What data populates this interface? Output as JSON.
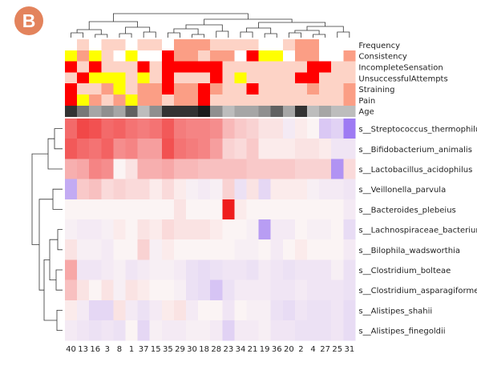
{
  "panel_label": "B",
  "colors": {
    "badge": "#e3835c",
    "high": "#ef1d1d",
    "mid": "#fbf4f4",
    "low": "#9e7bf3",
    "annotation_yellow": "#ffff00",
    "annotation_red": "#ff0000",
    "annotation_light": "#fdd3c6"
  },
  "chart_data": {
    "type": "heatmap",
    "title": "",
    "xlabel": "",
    "ylabel": "",
    "samples": [
      "40",
      "13",
      "16",
      "3",
      "8",
      "1",
      "37",
      "15",
      "35",
      "29",
      "30",
      "18",
      "28",
      "23",
      "34",
      "21",
      "19",
      "36",
      "20",
      "2",
      "4",
      "27",
      "25",
      "31"
    ],
    "annotation_tracks": [
      {
        "name": "Frequency",
        "values": [
          "w",
          "l",
          "w",
          "l",
          "l",
          "w",
          "l",
          "l",
          "w",
          "m",
          "m",
          "m",
          "l",
          "l",
          "l",
          "l",
          "w",
          "w",
          "l",
          "m",
          "m",
          "w",
          "w",
          "w"
        ]
      },
      {
        "name": "Consistency",
        "values": [
          "y",
          "m",
          "y",
          "l",
          "w",
          "y",
          "w",
          "w",
          "r",
          "m",
          "m",
          "l",
          "m",
          "m",
          "w",
          "r",
          "y",
          "y",
          "w",
          "m",
          "m",
          "w",
          "w",
          "m"
        ]
      },
      {
        "name": "IncompleteSensation",
        "values": [
          "r",
          "l",
          "r",
          "l",
          "l",
          "l",
          "r",
          "l",
          "r",
          "r",
          "r",
          "r",
          "r",
          "l",
          "l",
          "l",
          "l",
          "l",
          "l",
          "l",
          "r",
          "r",
          "l",
          "l"
        ]
      },
      {
        "name": "UnsuccessfulAttempts",
        "values": [
          "l",
          "r",
          "y",
          "y",
          "y",
          "l",
          "y",
          "l",
          "r",
          "l",
          "l",
          "l",
          "r",
          "l",
          "y",
          "l",
          "l",
          "l",
          "l",
          "r",
          "r",
          "l",
          "l",
          "l"
        ]
      },
      {
        "name": "Straining",
        "values": [
          "r",
          "l",
          "l",
          "m",
          "y",
          "l",
          "m",
          "m",
          "r",
          "m",
          "m",
          "r",
          "m",
          "l",
          "l",
          "r",
          "l",
          "l",
          "l",
          "l",
          "m",
          "l",
          "l",
          "m"
        ]
      },
      {
        "name": "Pain",
        "values": [
          "r",
          "y",
          "m",
          "l",
          "m",
          "y",
          "m",
          "m",
          "l",
          "m",
          "m",
          "r",
          "l",
          "l",
          "l",
          "l",
          "l",
          "l",
          "l",
          "l",
          "l",
          "l",
          "l",
          "m"
        ]
      },
      {
        "name": "Age",
        "values": [
          8,
          5,
          3,
          4,
          3,
          6,
          2,
          4,
          8,
          8,
          8,
          9,
          4,
          2,
          3,
          3,
          4,
          6,
          3,
          8,
          2,
          3,
          2,
          2
        ]
      }
    ],
    "color_scale": [
      "low",
      "mid",
      "high"
    ],
    "rows": [
      {
        "taxon": "s__Streptococcus_thermophilus",
        "values": [
          1.6,
          2.0,
          1.9,
          1.6,
          1.7,
          1.5,
          1.4,
          1.5,
          1.8,
          1.4,
          1.3,
          1.3,
          1.2,
          0.7,
          0.5,
          0.4,
          0.2,
          0.2,
          -0.2,
          0.1,
          0,
          -0.9,
          -0.7,
          -2.5
        ]
      },
      {
        "taxon": "s__Bifidobacterium_animalis",
        "values": [
          1.8,
          1.6,
          1.5,
          1.7,
          1.2,
          1.3,
          1.0,
          1.0,
          1.9,
          1.5,
          1.4,
          1.3,
          1.0,
          0.4,
          0.3,
          0.5,
          0.1,
          0.1,
          0.1,
          0.2,
          0.2,
          0.1,
          -0.3,
          -0.3
        ]
      },
      {
        "taxon": "s__Lactobacillus_acidophilus",
        "values": [
          0.8,
          0.9,
          1.3,
          1.2,
          0,
          0.2,
          0.8,
          0.8,
          0.9,
          0.7,
          0.7,
          0.6,
          0.6,
          0.6,
          0.6,
          0.5,
          0.5,
          0.5,
          0.5,
          0.4,
          0.4,
          0.4,
          -2.0,
          0.3
        ]
      },
      {
        "taxon": "s__Veillonella_parvula",
        "values": [
          -1.5,
          0.5,
          0.6,
          0.3,
          0.4,
          0.3,
          0.3,
          0.1,
          0.3,
          0.1,
          -0.1,
          -0.2,
          -0.1,
          0.4,
          -0.4,
          0.2,
          -0.6,
          0.1,
          0.1,
          0.1,
          -0.1,
          -0.2,
          -0.2,
          -0.3
        ]
      },
      {
        "taxon": "s__Bacteroides_plebeius",
        "values": [
          0,
          0,
          0,
          0,
          0,
          0,
          0,
          0,
          0,
          0.2,
          0,
          0,
          0,
          2.5,
          0.1,
          0,
          0,
          0,
          0,
          0,
          0,
          0,
          0,
          -0.2
        ]
      },
      {
        "taxon": "s__Lachnospiraceae_bacterium",
        "values": [
          -0.1,
          -0.2,
          -0.2,
          -0.1,
          0.1,
          0,
          0.2,
          0.1,
          0.3,
          0.2,
          0.2,
          0.2,
          0.1,
          0,
          0,
          -0.1,
          -1.8,
          -0.2,
          -0.2,
          0,
          -0.1,
          -0.1,
          0,
          -0.5
        ]
      },
      {
        "taxon": "s__Bilophila_wadsworthia",
        "values": [
          0.2,
          -0.1,
          -0.1,
          -0.2,
          0,
          0,
          0.4,
          -0.1,
          0.1,
          0,
          0,
          0,
          0,
          0,
          -0.1,
          -0.1,
          0,
          -0.2,
          0,
          0.1,
          0,
          0,
          0,
          -0.2
        ]
      },
      {
        "taxon": "s__Clostridium_bolteae",
        "values": [
          0.9,
          -0.3,
          -0.3,
          -0.2,
          -0.1,
          -0.3,
          -0.2,
          -0.1,
          -0.1,
          -0.2,
          -0.4,
          -0.5,
          -0.4,
          -0.3,
          -0.3,
          -0.4,
          -0.2,
          -0.3,
          -0.4,
          -0.3,
          -0.3,
          -0.3,
          -0.1,
          -0.4
        ]
      },
      {
        "taxon": "s__Clostridium_asparagiforme",
        "values": [
          0.6,
          0.2,
          0,
          0.2,
          -0.1,
          0.2,
          0.1,
          0,
          0,
          -0.1,
          -0.4,
          -0.5,
          -1.0,
          -0.4,
          -0.2,
          -0.2,
          -0.2,
          -0.3,
          -0.3,
          -0.2,
          -0.3,
          -0.3,
          -0.3,
          -0.4
        ]
      },
      {
        "taxon": "s__Alistipes_shahii",
        "values": [
          0.1,
          -0.2,
          -0.6,
          -0.6,
          0.2,
          -0.2,
          -0.4,
          -0.2,
          0.1,
          0.2,
          -0.2,
          0,
          0,
          -0.3,
          0,
          -0.1,
          -0.1,
          -0.4,
          -0.5,
          -0.3,
          -0.4,
          -0.4,
          -0.3,
          -0.5
        ]
      },
      {
        "taxon": "s__Alistipes_finegoldii",
        "values": [
          -0.2,
          -0.3,
          -0.4,
          -0.3,
          -0.4,
          0,
          -0.6,
          -0.1,
          -0.2,
          -0.2,
          -0.1,
          -0.1,
          -0.2,
          -0.7,
          -0.2,
          -0.2,
          -0.1,
          -0.3,
          -0.3,
          -0.4,
          -0.4,
          -0.4,
          -0.3,
          -0.5
        ]
      }
    ]
  }
}
